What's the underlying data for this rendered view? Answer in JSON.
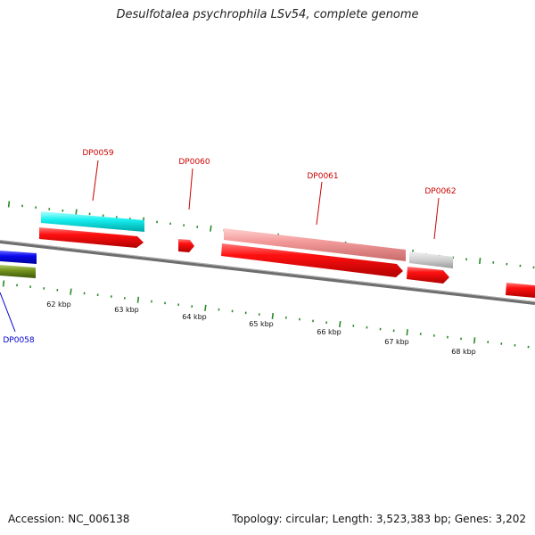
{
  "title": "Desulfotalea psychrophila LSv54, complete genome",
  "footer": {
    "accession": "Accession: NC_006138",
    "topology": "Topology: circular; Length: 3,523,383 bp; Genes: 3,202"
  },
  "colors": {
    "red": "#ee0000",
    "pink": "#f09a9a",
    "cyan": "#22f0f0",
    "blue": "#0000dd",
    "olive": "#6a8a1a",
    "grey": "#c8c8c8",
    "backbone": "#777777",
    "ticks": "#2a8a2a"
  },
  "gene_labels": [
    {
      "id": "DP0058",
      "text": "DP0058",
      "color": "#0000cc"
    },
    {
      "id": "DP0059",
      "text": "DP0059",
      "color": "#cc0000"
    },
    {
      "id": "DP0060",
      "text": "DP0060",
      "color": "#cc0000"
    },
    {
      "id": "DP0061",
      "text": "DP0061",
      "color": "#cc0000"
    },
    {
      "id": "DP0062",
      "text": "DP0062",
      "color": "#cc0000"
    }
  ],
  "scale_labels": [
    "62 kbp",
    "63 kbp",
    "64 kbp",
    "65 kbp",
    "66 kbp",
    "67 kbp",
    "68 kbp"
  ]
}
